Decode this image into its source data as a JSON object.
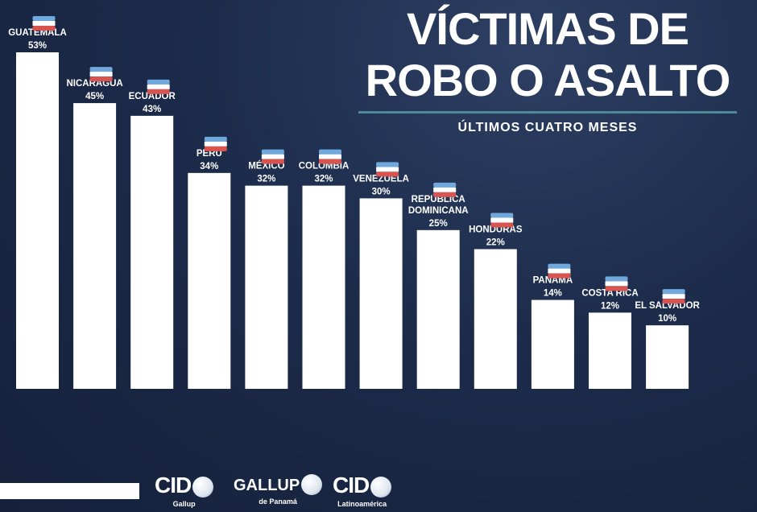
{
  "title": {
    "line1": "VÍCTIMAS DE",
    "line2": "ROBO O ASALTO"
  },
  "subtitle": "ÚLTIMOS CUATRO MESES",
  "chart_data": {
    "type": "bar",
    "title": "VÍCTIMAS DE ROBO O ASALTO",
    "subtitle": "ÚLTIMOS CUATRO MESES",
    "categories": [
      "GUATEMALA",
      "NICARAGUA",
      "ECUADOR",
      "PERÚ",
      "MÉXICO",
      "COLOMBIA",
      "VENEZUELA",
      "REPÚBLICA DOMINICANA",
      "HONDURAS",
      "PANAMÁ",
      "COSTA RICA",
      "EL SALVADOR"
    ],
    "category_lines": [
      [
        "GUATEMALA"
      ],
      [
        "NICARAGUA"
      ],
      [
        "ECUADOR"
      ],
      [
        "PERÚ"
      ],
      [
        "MÉXICO"
      ],
      [
        "COLOMBIA"
      ],
      [
        "VENEZUELA"
      ],
      [
        "REPÚBLICA",
        "DOMINICANA"
      ],
      [
        "HONDURAS"
      ],
      [
        "PANAMÁ"
      ],
      [
        "COSTA RICA"
      ],
      [
        "EL SALVADOR"
      ]
    ],
    "values": [
      53,
      45,
      43,
      34,
      32,
      32,
      30,
      25,
      22,
      14,
      12,
      10
    ],
    "value_labels": [
      "53%",
      "45%",
      "43%",
      "34%",
      "32%",
      "32%",
      "30%",
      "25%",
      "22%",
      "14%",
      "12%",
      "10%"
    ],
    "unit": "%",
    "bar_color": "#ffffff",
    "xlabel": "",
    "ylabel": "",
    "ylim": [
      0,
      53
    ],
    "grid": false,
    "legend": "none"
  },
  "flag_icons": [
    "guatemala-flag-icon",
    "nicaragua-flag-icon",
    "ecuador-flag-icon",
    "peru-flag-icon",
    "mexico-flag-icon",
    "colombia-flag-icon",
    "venezuela-flag-icon",
    "dominican-republic-flag-icon",
    "honduras-flag-icon",
    "panama-flag-icon",
    "costa-rica-flag-icon",
    "el-salvador-flag-icon"
  ],
  "logos": {
    "cid_gallup": {
      "main": "CID",
      "sub": "Gallup"
    },
    "gallup_panama": {
      "main": "GALLUP",
      "sub": "de Panamá"
    },
    "cid_latinoamerica": {
      "main": "CID",
      "sub": "Latinoamérica"
    }
  },
  "colors": {
    "background": "#1c2b4a",
    "bars": "#ffffff",
    "divider": "#4c8a98",
    "text": "#ffffff"
  }
}
